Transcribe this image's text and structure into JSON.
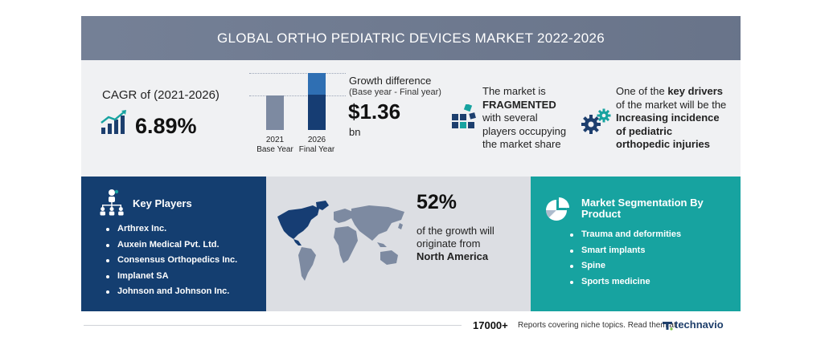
{
  "header": {
    "title": "GLOBAL ORTHO PEDIATRIC DEVICES MARKET 2022-2026"
  },
  "cagr": {
    "label": "CAGR of (2021-2026)",
    "value": "6.89%"
  },
  "growth_chart": {
    "bar_2021": {
      "year": "2021",
      "caption": "Base Year"
    },
    "bar_2026": {
      "year": "2026",
      "caption": "Final Year"
    }
  },
  "growth": {
    "label": "Growth difference",
    "sublabel": "(Base year - Final year)",
    "value": "$1.36",
    "unit": "bn"
  },
  "fragmentation": {
    "line1": "The market is",
    "emphasis": "FRAGMENTED",
    "line3": "with several",
    "line4": "players occupying",
    "line5": "the market share"
  },
  "drivers": {
    "line1_pre": "One of the ",
    "line1_bold": "key drivers",
    "line2": "of the market will be the",
    "line3_bold": "Increasing incidence",
    "line4_bold": "of pediatric",
    "line5_bold": "orthopedic injuries"
  },
  "key_players": {
    "title": "Key Players",
    "items": [
      "Arthrex Inc.",
      "Auxein Medical Pvt. Ltd.",
      "Consensus Orthopedics Inc.",
      "Implanet SA",
      "Johnson and Johnson Inc."
    ]
  },
  "regional": {
    "share": "52%",
    "line1": "of the growth will",
    "line2": "originate from",
    "region": "North America"
  },
  "segmentation": {
    "title": "Market Segmentation By Product",
    "items": [
      "Trauma and deformities",
      "Smart implants",
      "Spine",
      "Sports medicine"
    ]
  },
  "footer": {
    "count": "17000+",
    "text": "Reports covering niche topics. Read them at",
    "brand": "technavio"
  },
  "colors": {
    "header": "#6f7b92",
    "navy": "#143e70",
    "teal": "#17a3a0",
    "map_bg": "#dcdee3",
    "highlight_region": "#163d73"
  }
}
